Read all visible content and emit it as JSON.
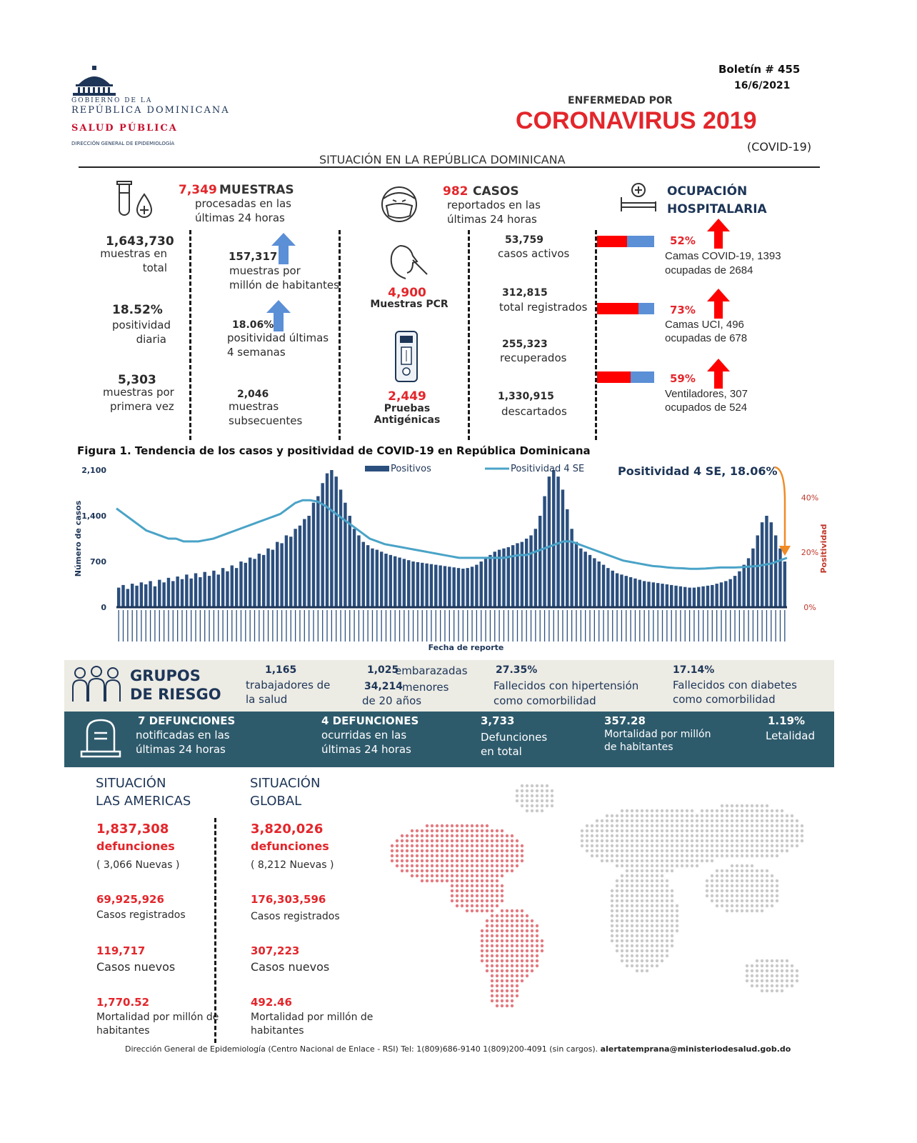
{
  "header": {
    "gov_line1": "GOBIERNO DE LA",
    "gov_line2": "REPÚBLICA DOMINICANA",
    "salud": "SALUD PÚBLICA",
    "direccion": "DIRECCIÓN GENERAL DE EPIDEMIOLOGÍA",
    "boletin": "Boletín # 455",
    "date": "16/6/2021",
    "enfermedad": "ENFERMEDAD POR",
    "title": "CORONAVIRUS 2019",
    "covid": "(COVID-19)",
    "situacion": "SITUACIÓN EN LA REPÚBLICA DOMINICANA"
  },
  "muestras": {
    "count": "7,349",
    "label": "MUESTRAS",
    "sub1": "procesadas en las",
    "sub2": "últimas 24 horas",
    "total_val": "1,643,730",
    "total_l1": "muestras en",
    "total_l2": "total",
    "pos_val": "18.52%",
    "pos_l1": "positividad",
    "pos_l2": "diaria",
    "primera_val": "5,303",
    "primera_l1": "muestras por",
    "primera_l2": "primera vez",
    "million_val": "157,317",
    "million_l1": "muestras por",
    "million_l2": "millón de habitantes",
    "pos4_val": "18.06%",
    "pos4_l1": "positividad últimas",
    "pos4_l2": "4 semanas",
    "subs_val": "2,046",
    "subs_l1": "muestras",
    "subs_l2": "subsecuentes"
  },
  "pruebas": {
    "pcr_val": "4,900",
    "pcr_label": "Muestras PCR",
    "ant_val": "2,449",
    "ant_label": "Pruebas Antigénicas"
  },
  "casos": {
    "count": "982",
    "label": "CASOS",
    "sub1": "reportados en las",
    "sub2": "últimas 24 horas",
    "activos_val": "53,759",
    "activos_label": "casos activos",
    "total_val": "312,815",
    "total_label": "total registrados",
    "recup_val": "255,323",
    "recup_label": "recuperados",
    "desc_val": "1,330,915",
    "desc_label": "descartados"
  },
  "ocupacion": {
    "title1": "OCUPACIÓN",
    "title2": "HOSPITALARIA",
    "items": [
      {
        "pct": "52%",
        "fill": 0.52,
        "l1": "Camas COVID-19,  1393",
        "l2": "ocupadas de 2684"
      },
      {
        "pct": "73%",
        "fill": 0.73,
        "l1": "Camas UCI,  496",
        "l2": "ocupadas de 678"
      },
      {
        "pct": "59%",
        "fill": 0.59,
        "l1": "Ventiladores, 307",
        "l2": "ocupados de 524"
      }
    ],
    "colors": {
      "occupied": "#ff0000",
      "free": "#5b8fd6"
    }
  },
  "figure": {
    "caption": "Figura 1. Tendencia de los casos y positividad de COVID-19 en República Dominicana",
    "annotation": "Positividad 4 SE, 18.06%"
  },
  "chart_data": {
    "type": "bar",
    "title": "Figura 1. Tendencia de los casos y positividad de COVID-19 en República Dominicana",
    "xlabel": "Fecha de reporte",
    "ylabel": "Número de casos",
    "y2label": "Positividad",
    "ylim": [
      0,
      2100
    ],
    "yticks": [
      "0",
      "700",
      "1,400",
      "2,100"
    ],
    "y2lim": [
      0,
      0.5
    ],
    "y2ticks": [
      "0%",
      "20%",
      "40%"
    ],
    "series": [
      {
        "name": "Positivos",
        "type": "bar",
        "color": "#2b4f7e",
        "values": [
          300,
          340,
          280,
          360,
          330,
          380,
          350,
          400,
          320,
          420,
          380,
          450,
          400,
          470,
          430,
          500,
          440,
          520,
          460,
          540,
          480,
          560,
          500,
          600,
          550,
          640,
          600,
          700,
          680,
          760,
          740,
          820,
          800,
          900,
          880,
          1000,
          980,
          1100,
          1080,
          1200,
          1250,
          1350,
          1400,
          1600,
          1700,
          1900,
          2050,
          2100,
          2000,
          1800,
          1600,
          1400,
          1200,
          1100,
          1000,
          950,
          900,
          880,
          850,
          820,
          800,
          780,
          760,
          740,
          720,
          700,
          690,
          680,
          670,
          660,
          650,
          640,
          630,
          620,
          610,
          600,
          590,
          600,
          620,
          650,
          700,
          750,
          800,
          850,
          880,
          900,
          920,
          950,
          980,
          1000,
          1050,
          1100,
          1200,
          1400,
          1700,
          2000,
          2100,
          2000,
          1800,
          1500,
          1200,
          1000,
          900,
          850,
          800,
          750,
          700,
          650,
          600,
          560,
          520,
          500,
          480,
          460,
          440,
          420,
          400,
          390,
          380,
          370,
          360,
          350,
          340,
          330,
          320,
          310,
          300,
          300,
          310,
          320,
          330,
          340,
          360,
          380,
          400,
          430,
          480,
          550,
          650,
          750,
          900,
          1100,
          1300,
          1400,
          1300,
          1100,
          900,
          700
        ]
      },
      {
        "name": "Positividad 4 SE",
        "type": "line",
        "color": "#4aa3c7",
        "values": [
          0.36,
          0.34,
          0.32,
          0.3,
          0.28,
          0.27,
          0.26,
          0.25,
          0.25,
          0.24,
          0.24,
          0.24,
          0.245,
          0.25,
          0.26,
          0.27,
          0.28,
          0.29,
          0.3,
          0.31,
          0.32,
          0.33,
          0.34,
          0.36,
          0.38,
          0.39,
          0.39,
          0.385,
          0.37,
          0.35,
          0.33,
          0.31,
          0.29,
          0.27,
          0.25,
          0.24,
          0.23,
          0.225,
          0.22,
          0.215,
          0.21,
          0.205,
          0.2,
          0.195,
          0.19,
          0.185,
          0.18,
          0.18,
          0.18,
          0.18,
          0.18,
          0.18,
          0.18,
          0.185,
          0.19,
          0.19,
          0.2,
          0.21,
          0.22,
          0.23,
          0.24,
          0.24,
          0.23,
          0.22,
          0.21,
          0.2,
          0.19,
          0.18,
          0.17,
          0.165,
          0.16,
          0.155,
          0.15,
          0.148,
          0.145,
          0.143,
          0.142,
          0.14,
          0.14,
          0.141,
          0.143,
          0.145,
          0.145,
          0.145,
          0.146,
          0.148,
          0.15,
          0.155,
          0.16,
          0.17,
          0.18
        ]
      }
    ],
    "legend": "top-center"
  },
  "riesgo": {
    "title1": "GRUPOS",
    "title2": "DE RIESGO",
    "trab_val": "1,165",
    "trab_l1": "trabajadores de",
    "trab_l2": "la salud",
    "emb_val": "1,025",
    "emb_label": "embarazadas",
    "men_val": "34,214",
    "men_l1": "menores",
    "men_l2": "de 20 años",
    "hip_val": "27.35%",
    "hip_l1": "Fallecidos con hipertensión",
    "hip_l2": "como comorbilidad",
    "dia_val": "17.14%",
    "dia_l1": "Fallecidos con diabetes",
    "dia_l2": "como comorbilidad"
  },
  "defunciones": {
    "notif_val": "7 DEFUNCIONES",
    "notif_l1": "notificadas en las",
    "notif_l2": "últimas 24 horas",
    "ocur_val": "4  DEFUNCIONES",
    "ocur_l1": "ocurridas en las",
    "ocur_l2": "últimas  24 horas",
    "total_val": "3,733",
    "total_l1": "Defunciones",
    "total_l2": "en total",
    "mort_val": "357.28",
    "mort_l1": "Mortalidad por millón",
    "mort_l2": "de habitantes",
    "let_val": "1.19%",
    "let_label": "Letalidad"
  },
  "americas": {
    "h1": "SITUACIÓN",
    "h2": "LAS AMERICAS",
    "def_val": "1,837,308",
    "def_label": "defunciones",
    "def_new": "( 3,066 Nuevas )",
    "casos_val": "69,925,926",
    "casos_label": "Casos registrados",
    "nuevos_val": "119,717",
    "nuevos_label": "Casos nuevos",
    "mort_val": "1,770.52",
    "mort_l1": "Mortalidad por millón de",
    "mort_l2": "habitantes"
  },
  "global": {
    "h1": "SITUACIÓN",
    "h2": "GLOBAL",
    "def_val": "3,820,026",
    "def_label": "defunciones",
    "def_new": "( 8,212 Nuevas )",
    "casos_val": "176,303,596",
    "casos_label": "Casos registrados",
    "nuevos_val": "307,223",
    "nuevos_label": "Casos nuevos",
    "mort_val": "492.46",
    "mort_l1": "Mortalidad por millón de",
    "mort_l2": "habitantes"
  },
  "footer": {
    "text": "Dirección General de Epidemiología (Centro Nacional de Enlace - RSI) Tel: 1(809)686-9140   1(809)200-4091 (sin cargos).",
    "email": "alertatemprana@ministeriodesalud.gob.do"
  }
}
